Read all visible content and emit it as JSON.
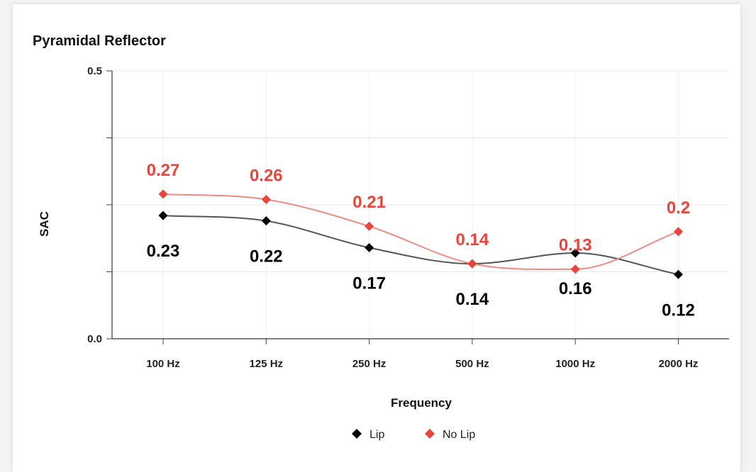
{
  "chart_data": {
    "type": "line",
    "title": "Pyramidal Reflector",
    "xlabel": "Frequency",
    "ylabel": "SAC",
    "categories": [
      "100 Hz",
      "125 Hz",
      "250 Hz",
      "500 Hz",
      "1000 Hz",
      "2000 Hz"
    ],
    "ylim": [
      0,
      0.5
    ],
    "yticks": [
      0.0,
      0.5
    ],
    "ytick_labels": [
      "0.0",
      "0.5"
    ],
    "series": [
      {
        "name": "Lip",
        "values": [
          0.23,
          0.22,
          0.17,
          0.14,
          0.16,
          0.12
        ],
        "labels": [
          "0.23",
          "0.22",
          "0.17",
          "0.14",
          "0.16",
          "0.12"
        ],
        "color": "#000000",
        "line_color": "#555555",
        "marker": "diamond",
        "label_position": "below"
      },
      {
        "name": "No Lip",
        "values": [
          0.27,
          0.26,
          0.21,
          0.14,
          0.13,
          0.2
        ],
        "labels": [
          "0.27",
          "0.26",
          "0.21",
          "0.14",
          "0.13",
          "0.2"
        ],
        "color": "#e8453c",
        "line_color": "#f08a84",
        "marker": "diamond",
        "label_position": "above"
      }
    ],
    "grid": true,
    "legend_position": "bottom",
    "smooth": true
  }
}
